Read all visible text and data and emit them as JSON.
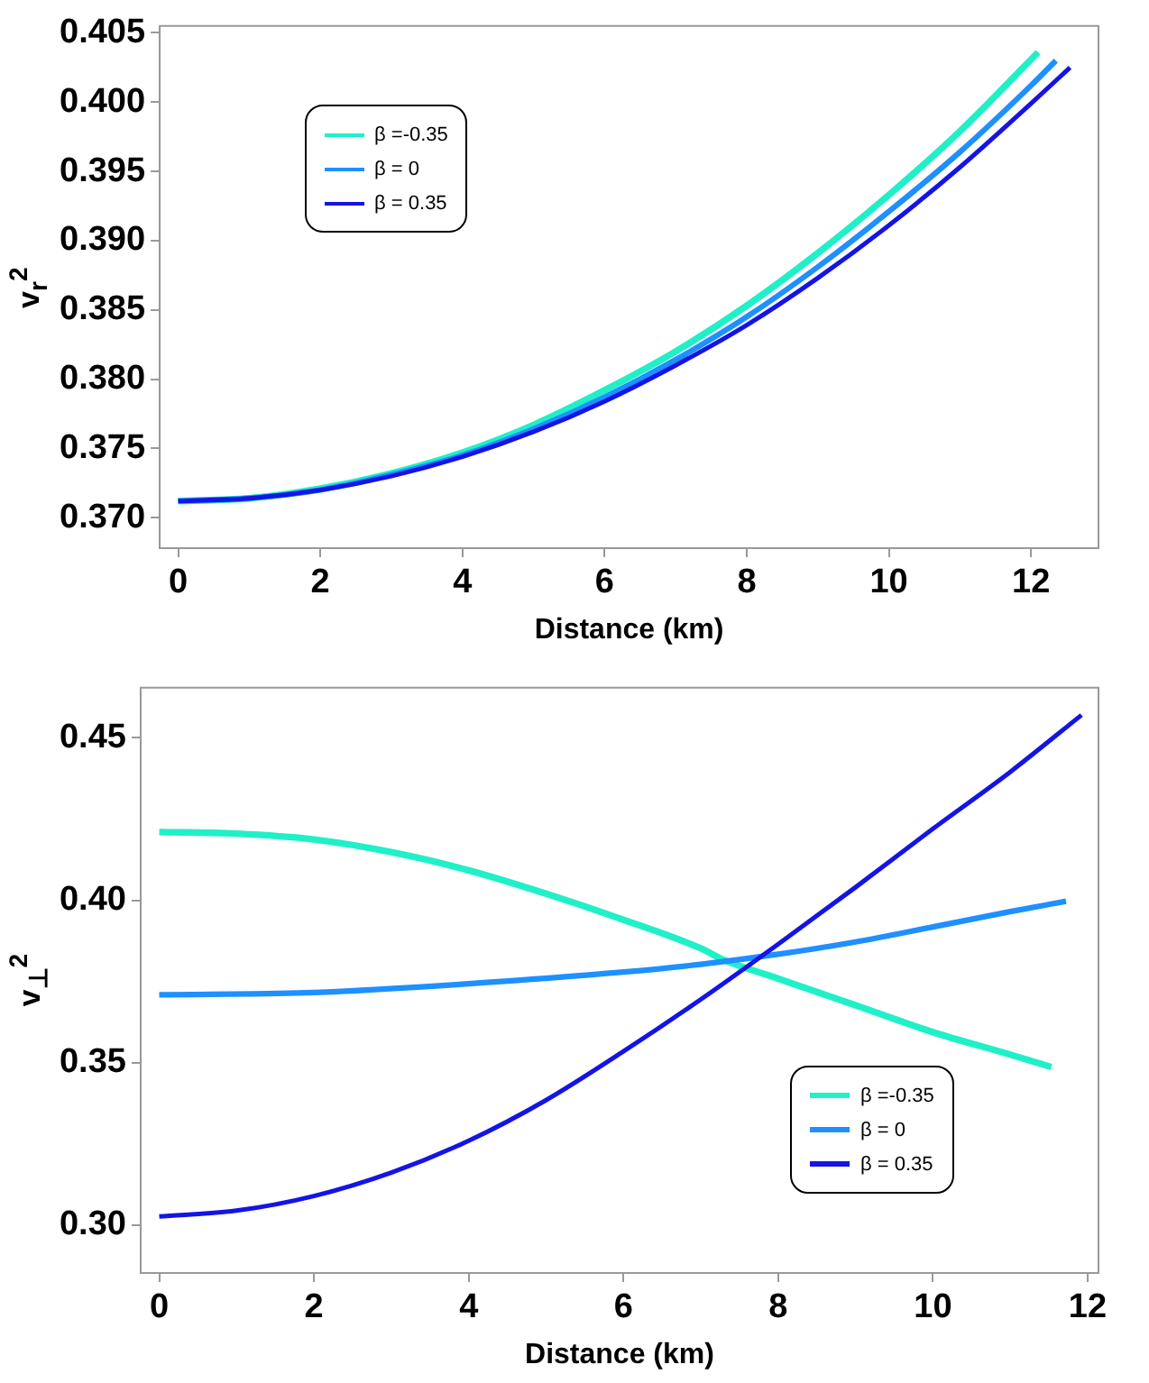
{
  "chart_data": [
    {
      "type": "line",
      "xlabel": "Distance (km)",
      "ylabel": "v$_{r}$$^{2}$",
      "xlim": [
        -0.26,
        12.95
      ],
      "ylim": [
        0.3678,
        0.4055
      ],
      "xticks": [
        0,
        2,
        4,
        6,
        8,
        10,
        12
      ],
      "yticks": [
        {
          "value": 0.37,
          "label": "0.370"
        },
        0.375,
        {
          "value": 0.38,
          "label": "0.380"
        },
        0.385,
        {
          "value": 0.39,
          "label": "0.390"
        },
        0.395,
        {
          "value": 0.4,
          "label": "0.400"
        },
        0.405
      ],
      "legend": "top left",
      "grid": false,
      "marker": "none",
      "line_style": "solid",
      "series": [
        {
          "name": "β =-0.35",
          "color": "#20f0c8",
          "x": [
            0,
            1,
            2,
            3,
            4,
            5,
            6,
            7,
            8,
            9,
            10,
            11,
            12.1
          ],
          "values": [
            0.3712,
            0.3714,
            0.3721,
            0.3732,
            0.3747,
            0.3767,
            0.3792,
            0.382,
            0.3853,
            0.3891,
            0.3933,
            0.3979,
            0.4036
          ]
        },
        {
          "name": "β = 0",
          "color": "#1e90ff",
          "x": [
            0,
            1,
            2,
            3,
            4,
            5,
            6,
            7,
            8,
            9,
            10,
            11,
            12,
            12.35
          ],
          "values": [
            0.3712,
            0.3714,
            0.372,
            0.3731,
            0.3745,
            0.3764,
            0.3787,
            0.3814,
            0.3845,
            0.3881,
            0.3921,
            0.3964,
            0.4012,
            0.403
          ]
        },
        {
          "name": "β = 0.35",
          "color": "#1414e6",
          "x": [
            0,
            1,
            2,
            3,
            4,
            5,
            6,
            7,
            8,
            9,
            10,
            11,
            12,
            12.55
          ],
          "values": [
            0.3712,
            0.3714,
            0.372,
            0.373,
            0.3744,
            0.3762,
            0.3784,
            0.381,
            0.3839,
            0.3873,
            0.3911,
            0.3953,
            0.3999,
            0.4025
          ]
        }
      ]
    },
    {
      "type": "line",
      "xlabel": "Distance (km)",
      "ylabel": "v$_{⊥}$$^{2}$",
      "xlim": [
        -0.24,
        12.14
      ],
      "ylim": [
        0.2853,
        0.4654
      ],
      "xticks": [
        0,
        2,
        4,
        6,
        8,
        10,
        12
      ],
      "yticks": [
        {
          "value": 0.3,
          "label": "0.30"
        },
        0.35,
        {
          "value": 0.4,
          "label": "0.40"
        },
        0.45
      ],
      "legend": "bottom right",
      "grid": false,
      "marker": "none",
      "line_style": "solid",
      "series": [
        {
          "name": "β =-0.35",
          "color": "#20f0c8",
          "x": [
            0,
            1,
            2,
            3,
            4,
            5,
            6,
            7,
            7.3,
            8,
            9,
            10,
            11,
            11.53
          ],
          "values": [
            0.421,
            0.4205,
            0.4187,
            0.4148,
            0.4092,
            0.402,
            0.394,
            0.3852,
            0.3816,
            0.3759,
            0.3677,
            0.3594,
            0.3525,
            0.3487
          ]
        },
        {
          "name": "β = 0",
          "color": "#1e90ff",
          "x": [
            0,
            2,
            4,
            6,
            7,
            8,
            9,
            10,
            11,
            11.72
          ],
          "values": [
            0.3709,
            0.3716,
            0.3743,
            0.3779,
            0.3803,
            0.3834,
            0.3872,
            0.3918,
            0.3965,
            0.3997
          ]
        },
        {
          "name": "β = 0.35",
          "color": "#1414e6",
          "x": [
            0,
            1,
            2,
            3,
            4,
            5,
            6,
            7,
            8,
            9,
            10,
            11,
            11.92
          ],
          "values": [
            0.3027,
            0.3045,
            0.309,
            0.3162,
            0.326,
            0.3385,
            0.3535,
            0.3695,
            0.3865,
            0.404,
            0.422,
            0.4395,
            0.457
          ]
        }
      ]
    }
  ]
}
